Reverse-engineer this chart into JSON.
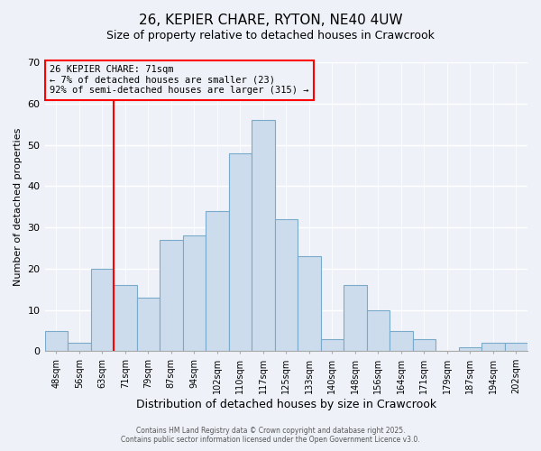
{
  "title": "26, KEPIER CHARE, RYTON, NE40 4UW",
  "subtitle": "Size of property relative to detached houses in Crawcrook",
  "xlabel": "Distribution of detached houses by size in Crawcrook",
  "ylabel": "Number of detached properties",
  "bin_labels": [
    "48sqm",
    "56sqm",
    "63sqm",
    "71sqm",
    "79sqm",
    "87sqm",
    "94sqm",
    "102sqm",
    "110sqm",
    "117sqm",
    "125sqm",
    "133sqm",
    "140sqm",
    "148sqm",
    "156sqm",
    "164sqm",
    "171sqm",
    "179sqm",
    "187sqm",
    "194sqm",
    "202sqm"
  ],
  "bar_values": [
    5,
    2,
    20,
    16,
    13,
    27,
    28,
    34,
    48,
    56,
    32,
    23,
    3,
    16,
    10,
    5,
    3,
    0,
    1,
    2,
    2
  ],
  "bar_color": "#ccdcec",
  "bar_edge_color": "#7aaaca",
  "vline_color": "red",
  "vline_x_index": 3,
  "ylim": [
    0,
    70
  ],
  "yticks": [
    0,
    10,
    20,
    30,
    40,
    50,
    60,
    70
  ],
  "annotation_title": "26 KEPIER CHARE: 71sqm",
  "annotation_line1": "← 7% of detached houses are smaller (23)",
  "annotation_line2": "92% of semi-detached houses are larger (315) →",
  "footer1": "Contains HM Land Registry data © Crown copyright and database right 2025.",
  "footer2": "Contains public sector information licensed under the Open Government Licence v3.0.",
  "bg_color": "#eef2f8",
  "grid_color": "#ffffff",
  "title_fontsize": 11,
  "subtitle_fontsize": 9,
  "axis_label_fontsize": 8,
  "tick_fontsize": 7,
  "ann_fontsize": 7.5
}
